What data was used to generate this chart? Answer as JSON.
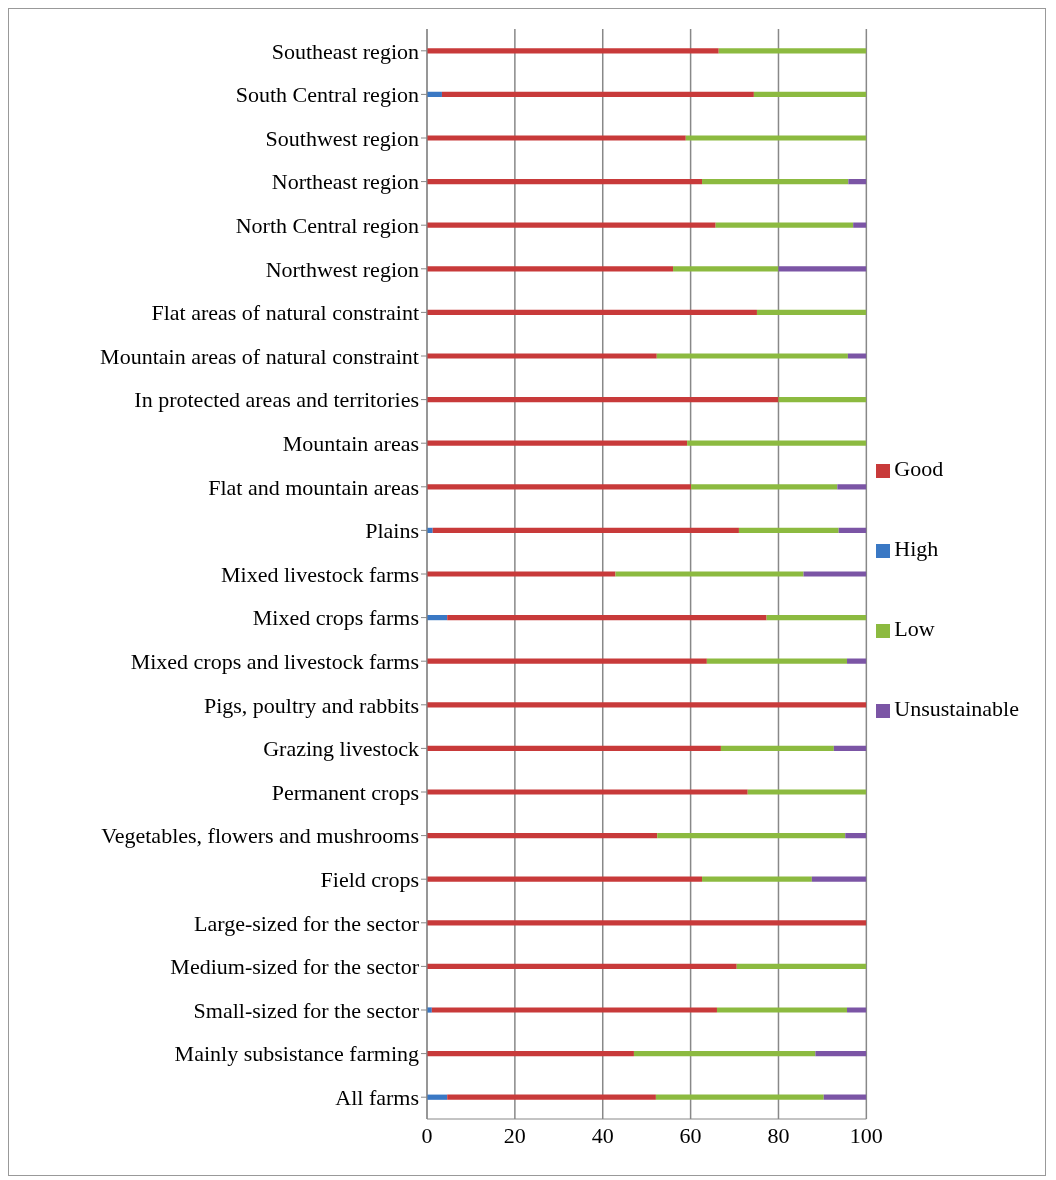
{
  "chart_data": {
    "type": "bar",
    "orientation": "horizontal",
    "stacked": true,
    "grid": "x",
    "legend": "right",
    "categories": [
      "Southeast region",
      "South Central region",
      "Southwest region",
      "Northeast region",
      "North Central region",
      "Northwest region",
      "Flat areas of natural constraint",
      "Mountain areas of natural constraint",
      "In protected areas and territories",
      "Mountain areas",
      "Flat and mountain areas",
      "Plains",
      "Mixed livestock farms",
      "Mixed crops farms",
      "Mixed crops and livestock farms",
      "Pigs, poultry and rabbits",
      "Grazing livestock",
      "Permanent crops",
      "Vegetables, flowers and mushrooms",
      "Field crops",
      "Large-sized for the sector",
      "Medium-sized for the sector",
      "Small-sized for the sector",
      "Mainly subsistance farming",
      "All farms"
    ],
    "series": [
      {
        "name": "High",
        "color": "#3a78c4",
        "values": [
          null,
          3.4,
          null,
          null,
          null,
          null,
          null,
          null,
          null,
          null,
          null,
          1.3,
          null,
          4.6,
          null,
          null,
          null,
          null,
          null,
          null,
          null,
          null,
          1.1,
          null,
          4.6
        ]
      },
      {
        "name": "Good",
        "color": "#c83a3a",
        "values": [
          66.4,
          71.0,
          58.9,
          62.6,
          65.7,
          56.0,
          75.1,
          52.3,
          80.0,
          59.2,
          60.1,
          69.7,
          42.9,
          72.7,
          63.7,
          100,
          66.9,
          73.0,
          52.4,
          62.6,
          100,
          70.5,
          64.9,
          47.1,
          47.5
        ]
      },
      {
        "name": "Low",
        "color": "#8cba40",
        "values": [
          33.6,
          25.6,
          41.1,
          33.3,
          31.3,
          24.0,
          24.9,
          43.5,
          20.0,
          40.8,
          33.3,
          22.7,
          42.8,
          22.7,
          31.9,
          null,
          25.7,
          27.0,
          42.8,
          25.0,
          null,
          29.5,
          29.6,
          41.3,
          38.2
        ]
      },
      {
        "name": "Unsustainable",
        "color": "#7b55a5",
        "values": [
          null,
          null,
          null,
          4.1,
          3.0,
          20.0,
          null,
          4.2,
          null,
          null,
          6.6,
          6.3,
          14.3,
          null,
          4.4,
          null,
          7.4,
          null,
          4.8,
          12.4,
          null,
          null,
          4.4,
          11.6,
          9.7
        ]
      }
    ],
    "xlim": [
      0,
      100
    ],
    "xticks": [
      0,
      20,
      40,
      60,
      80,
      100
    ]
  }
}
